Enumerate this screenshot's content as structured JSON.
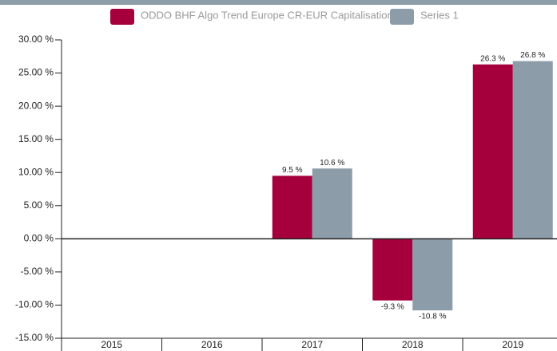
{
  "chart_data": {
    "type": "bar",
    "categories": [
      "2015",
      "2016",
      "2017",
      "2018",
      "2019"
    ],
    "series": [
      {
        "name": "ODDO BHF Algo Trend Europe CR-EUR Capitalisation",
        "color": "#a5003b",
        "values": [
          null,
          null,
          9.5,
          -9.3,
          26.3
        ],
        "value_labels": [
          null,
          null,
          "9.5 %",
          "-9.3 %",
          "26.3 %"
        ]
      },
      {
        "name": "Series 1",
        "color": "#8d9ca9",
        "values": [
          null,
          null,
          10.6,
          -10.8,
          26.8
        ],
        "value_labels": [
          null,
          null,
          "10.6 %",
          "-10.8 %",
          "26.8 %"
        ]
      }
    ],
    "ylim": [
      -15,
      30
    ],
    "yticks": [
      {
        "value": -15,
        "label": "-15.00 %"
      },
      {
        "value": -10,
        "label": "-10.00 %"
      },
      {
        "value": -5,
        "label": "-5.00 %"
      },
      {
        "value": 0,
        "label": "0.00 %"
      },
      {
        "value": 5,
        "label": "5.00 %"
      },
      {
        "value": 10,
        "label": "10.00 %"
      },
      {
        "value": 15,
        "label": "15.00 %"
      },
      {
        "value": 20,
        "label": "20.00 %"
      },
      {
        "value": 25,
        "label": "25.00 %"
      },
      {
        "value": 30,
        "label": "30.00 %"
      }
    ],
    "legend": "top"
  }
}
